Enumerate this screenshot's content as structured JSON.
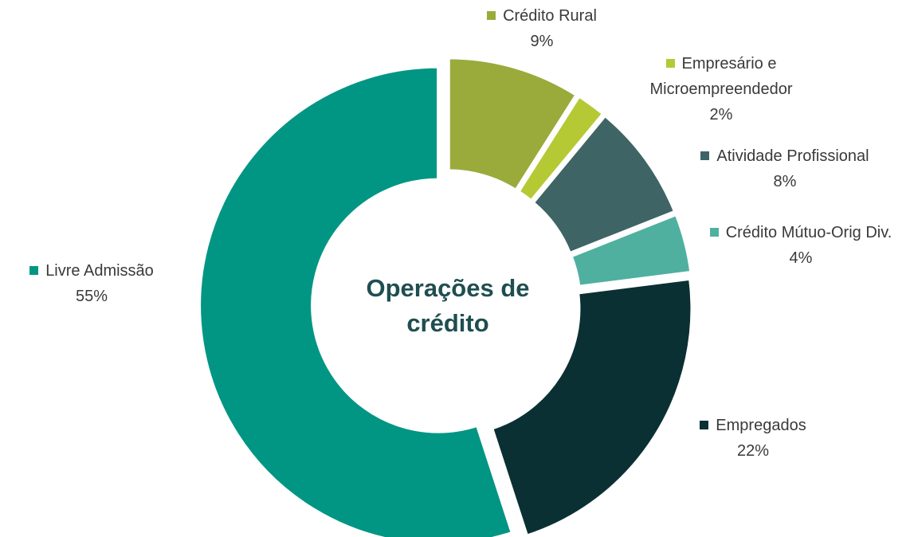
{
  "chart_data": {
    "type": "donut",
    "center_label": "Operações de crédito",
    "categories": [
      "Crédito Rural",
      "Empresário e Microempreendedor",
      "Atividade Profissional",
      "Crédito Mútuo-Orig Div.",
      "Empregados",
      "Livre Admissão"
    ],
    "values": [
      9,
      2,
      8,
      4,
      22,
      55
    ],
    "value_labels": [
      "9%",
      "2%",
      "8%",
      "4%",
      "22%",
      "55%"
    ],
    "colors": [
      "#9aab3c",
      "#b4c934",
      "#3f6466",
      "#4fb0a0",
      "#0b3034",
      "#009683"
    ]
  }
}
